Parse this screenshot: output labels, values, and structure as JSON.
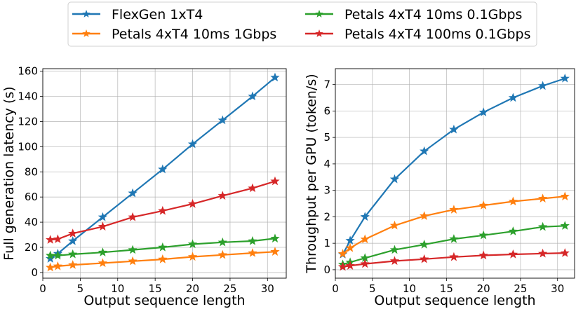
{
  "chart_data": {
    "legend": {
      "placement": "top-center",
      "columns": 2,
      "entries": [
        {
          "name": "FlexGen 1xT4",
          "color": "#1f77b4"
        },
        {
          "name": "Petals 4xT4 10ms 1Gbps",
          "color": "#ff7f0e"
        },
        {
          "name": "Petals 4xT4 10ms 0.1Gbps",
          "color": "#2ca02c"
        },
        {
          "name": "Petals 4xT4 100ms 0.1Gbps",
          "color": "#d62728"
        }
      ]
    },
    "marker": "star",
    "charts": [
      {
        "type": "line",
        "xlabel": "Output sequence length",
        "ylabel": "Full generation latency (s)",
        "xlim": [
          0,
          32.5
        ],
        "ylim": [
          -4.5,
          162
        ],
        "xticks": [
          0,
          5,
          10,
          15,
          20,
          25,
          30
        ],
        "yticks": [
          0,
          20,
          40,
          60,
          80,
          100,
          120,
          140,
          160
        ],
        "grid": true,
        "x": [
          1,
          2,
          4,
          8,
          12,
          16,
          20,
          24,
          28,
          31
        ],
        "series": [
          {
            "name": "FlexGen 1xT4",
            "values": [
              11,
              15,
              25,
              44,
              63,
              82,
              102,
              121,
              140,
              155
            ]
          },
          {
            "name": "Petals 4xT4 10ms 1Gbps",
            "values": [
              4,
              5,
              6,
              7.5,
              9,
              10.5,
              12.5,
              14,
              15.5,
              16.5
            ]
          },
          {
            "name": "Petals 4xT4 10ms 0.1Gbps",
            "values": [
              13.5,
              13.5,
              14.5,
              16,
              18,
              20,
              22.5,
              24,
              25,
              27
            ]
          },
          {
            "name": "Petals 4xT4 100ms 0.1Gbps",
            "values": [
              26,
              26.5,
              31,
              36.5,
              44,
              49,
              54.5,
              61,
              67,
              72.5
            ]
          }
        ]
      },
      {
        "type": "line",
        "xlabel": "Output sequence length",
        "ylabel": "Throughput per GPU (token/s)",
        "xlim": [
          0,
          32.3
        ],
        "ylim": [
          -0.32,
          7.6
        ],
        "xticks": [
          0,
          5,
          10,
          15,
          20,
          25,
          30
        ],
        "yticks": [
          0,
          1,
          2,
          3,
          4,
          5,
          6,
          7
        ],
        "grid": true,
        "x": [
          1,
          2,
          4,
          8,
          12,
          16,
          20,
          24,
          28,
          31
        ],
        "series": [
          {
            "name": "FlexGen 1xT4",
            "values": [
              0.58,
              1.1,
              2.0,
              3.42,
              4.48,
              5.3,
              5.95,
              6.5,
              6.95,
              7.23
            ]
          },
          {
            "name": "Petals 4xT4 10ms 1Gbps",
            "values": [
              0.6,
              0.82,
              1.15,
              1.67,
              2.03,
              2.27,
              2.43,
              2.58,
              2.69,
              2.77
            ]
          },
          {
            "name": "Petals 4xT4 10ms 0.1Gbps",
            "values": [
              0.2,
              0.28,
              0.44,
              0.75,
              0.95,
              1.16,
              1.3,
              1.45,
              1.62,
              1.66
            ]
          },
          {
            "name": "Petals 4xT4 100ms 0.1Gbps",
            "values": [
              0.11,
              0.15,
              0.22,
              0.33,
              0.4,
              0.48,
              0.54,
              0.58,
              0.61,
              0.63
            ]
          }
        ]
      }
    ]
  }
}
